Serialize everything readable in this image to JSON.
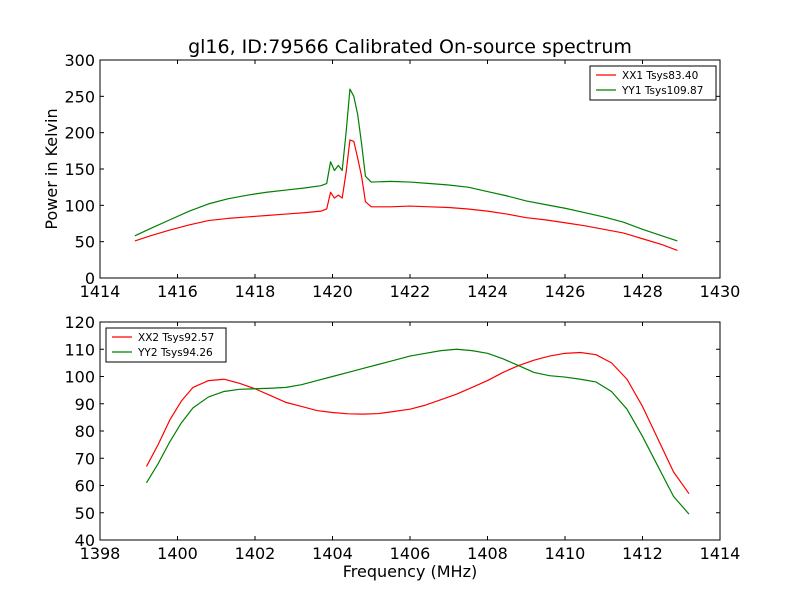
{
  "figure": {
    "title": "gl16, ID:79566 Calibrated On-source spectrum"
  },
  "chart_data": [
    {
      "type": "line",
      "title": "gl16, ID:79566 Calibrated On-source spectrum",
      "xlabel": "",
      "ylabel": "Power in Kelvin",
      "xlim": [
        1414,
        1430
      ],
      "ylim": [
        0,
        300
      ],
      "xticks": [
        1414,
        1416,
        1418,
        1420,
        1422,
        1424,
        1426,
        1428,
        1430
      ],
      "yticks": [
        0,
        50,
        100,
        150,
        200,
        250,
        300
      ],
      "grid": false,
      "legend": "top-right",
      "series": [
        {
          "name": "XX1 Tsys83.40",
          "color": "#ff0000",
          "x": [
            1414.9,
            1415.3,
            1415.8,
            1416.3,
            1416.8,
            1417.3,
            1417.8,
            1418.3,
            1418.8,
            1419.3,
            1419.7,
            1419.85,
            1419.95,
            1420.05,
            1420.15,
            1420.25,
            1420.35,
            1420.45,
            1420.55,
            1420.65,
            1420.75,
            1420.85,
            1421.0,
            1421.5,
            1422.0,
            1422.5,
            1423.0,
            1423.5,
            1424.0,
            1424.5,
            1425.0,
            1425.5,
            1426.0,
            1426.5,
            1427.0,
            1427.5,
            1428.0,
            1428.5,
            1428.9
          ],
          "y": [
            51,
            58,
            66,
            73,
            79,
            82,
            84,
            86,
            88,
            90,
            92,
            95,
            118,
            110,
            114,
            110,
            145,
            190,
            188,
            165,
            140,
            105,
            98,
            98,
            99,
            98,
            97,
            95,
            92,
            88,
            83,
            80,
            76,
            72,
            67,
            62,
            54,
            46,
            38
          ]
        },
        {
          "name": "YY1 Tsys109.87",
          "color": "#008000",
          "x": [
            1414.9,
            1415.3,
            1415.8,
            1416.3,
            1416.8,
            1417.3,
            1417.8,
            1418.3,
            1418.8,
            1419.3,
            1419.7,
            1419.85,
            1419.95,
            1420.05,
            1420.15,
            1420.25,
            1420.35,
            1420.45,
            1420.55,
            1420.65,
            1420.75,
            1420.85,
            1421.0,
            1421.5,
            1422.0,
            1422.5,
            1423.0,
            1423.5,
            1424.0,
            1424.5,
            1425.0,
            1425.5,
            1426.0,
            1426.5,
            1427.0,
            1427.5,
            1428.0,
            1428.5,
            1428.9
          ],
          "y": [
            58,
            68,
            80,
            92,
            102,
            109,
            114,
            118,
            121,
            124,
            127,
            130,
            160,
            148,
            155,
            148,
            200,
            260,
            250,
            225,
            185,
            140,
            132,
            133,
            132,
            130,
            128,
            125,
            119,
            113,
            106,
            101,
            96,
            90,
            84,
            77,
            67,
            58,
            51
          ]
        }
      ]
    },
    {
      "type": "line",
      "title": "",
      "xlabel": "Frequency (MHz)",
      "ylabel": "",
      "xlim": [
        1398,
        1414
      ],
      "ylim": [
        40,
        120
      ],
      "xticks": [
        1398,
        1400,
        1402,
        1404,
        1406,
        1408,
        1410,
        1412,
        1414
      ],
      "yticks": [
        40,
        50,
        60,
        70,
        80,
        90,
        100,
        110,
        120
      ],
      "grid": false,
      "legend": "top-left",
      "series": [
        {
          "name": "XX2 Tsys92.57",
          "color": "#ff0000",
          "x": [
            1399.2,
            1399.5,
            1399.8,
            1400.1,
            1400.4,
            1400.8,
            1401.2,
            1401.6,
            1402.0,
            1402.4,
            1402.8,
            1403.2,
            1403.6,
            1404.0,
            1404.4,
            1404.8,
            1405.2,
            1405.6,
            1406.0,
            1406.4,
            1406.8,
            1407.2,
            1407.6,
            1408.0,
            1408.4,
            1408.8,
            1409.2,
            1409.6,
            1410.0,
            1410.4,
            1410.8,
            1411.2,
            1411.6,
            1412.0,
            1412.4,
            1412.8,
            1413.2
          ],
          "y": [
            67,
            75,
            84,
            91,
            96,
            98.5,
            99,
            97.5,
            95.5,
            93,
            90.5,
            89,
            87.5,
            86.8,
            86.3,
            86.2,
            86.4,
            87.2,
            88,
            89.5,
            91.5,
            93.5,
            96,
            98.5,
            101.5,
            104,
            106,
            107.5,
            108.5,
            108.8,
            108,
            105,
            99,
            89,
            77,
            65,
            57
          ]
        },
        {
          "name": "YY2 Tsys94.26",
          "color": "#008000",
          "x": [
            1399.2,
            1399.5,
            1399.8,
            1400.1,
            1400.4,
            1400.8,
            1401.2,
            1401.6,
            1402.0,
            1402.4,
            1402.8,
            1403.2,
            1403.6,
            1404.0,
            1404.4,
            1404.8,
            1405.2,
            1405.6,
            1406.0,
            1406.4,
            1406.8,
            1407.2,
            1407.6,
            1408.0,
            1408.4,
            1408.8,
            1409.2,
            1409.6,
            1410.0,
            1410.4,
            1410.8,
            1411.2,
            1411.6,
            1412.0,
            1412.4,
            1412.8,
            1413.2
          ],
          "y": [
            61,
            68,
            76,
            83,
            88.5,
            92.5,
            94.5,
            95.3,
            95.5,
            95.7,
            96,
            97,
            98.5,
            100,
            101.5,
            103,
            104.5,
            106,
            107.5,
            108.5,
            109.5,
            110,
            109.5,
            108.5,
            106.5,
            104,
            101.5,
            100.3,
            99.8,
            99,
            98,
            94.5,
            88,
            78,
            67,
            56,
            49.5
          ]
        }
      ]
    }
  ]
}
